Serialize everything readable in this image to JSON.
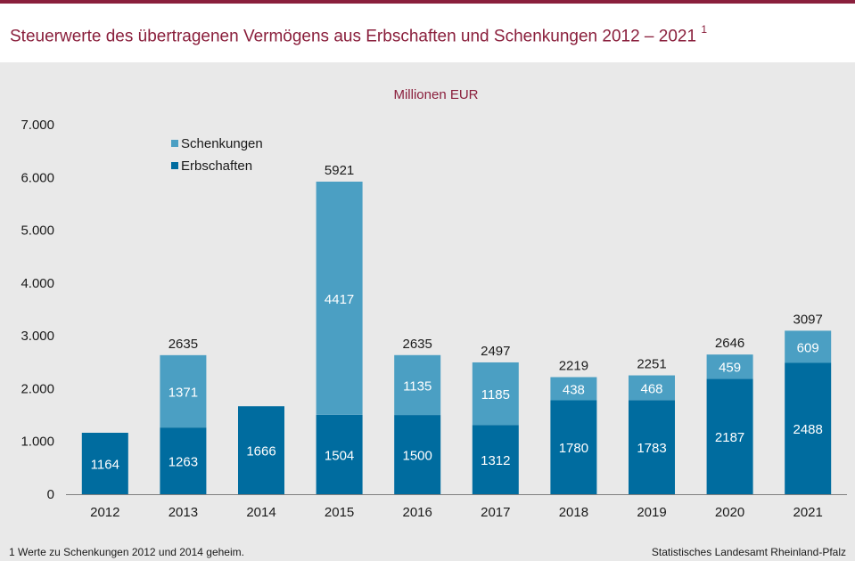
{
  "header": {
    "title": "Steuerwerte des übertragenen Vermögens aus Erbschaften und Schenkungen 2012 – 2021",
    "title_footnote_mark": "1"
  },
  "chart_data": {
    "type": "bar",
    "stacked": true,
    "unit_label": "Millionen  EUR",
    "categories": [
      "2012",
      "2013",
      "2014",
      "2015",
      "2016",
      "2017",
      "2018",
      "2019",
      "2020",
      "2021"
    ],
    "series": [
      {
        "name": "Erbschaften",
        "color": "#006c9f",
        "values": [
          1164,
          1263,
          1666,
          1504,
          1500,
          1312,
          1780,
          1783,
          2187,
          2488
        ]
      },
      {
        "name": "Schenkungen",
        "color": "#4b9fc3",
        "values": [
          null,
          1371,
          null,
          4417,
          1135,
          1185,
          438,
          468,
          459,
          609
        ]
      }
    ],
    "totals": [
      null,
      2635,
      null,
      5921,
      2635,
      2497,
      2219,
      2251,
      2646,
      3097
    ],
    "ylim": [
      0,
      7000
    ],
    "yticks": [
      0,
      1000,
      2000,
      3000,
      4000,
      5000,
      6000,
      7000
    ],
    "ytick_labels": [
      "0",
      "1.000",
      "2.000",
      "3.000",
      "4.000",
      "5.000",
      "6.000",
      "7.000"
    ],
    "legend": [
      "Schenkungen",
      "Erbschaften"
    ],
    "legend_position": "top-left",
    "grid": false
  },
  "footer": {
    "footnote": "1 Werte zu Schenkungen 2012 und 2014 geheim.",
    "source": "Statistisches Landesamt Rheinland-Pfalz"
  }
}
